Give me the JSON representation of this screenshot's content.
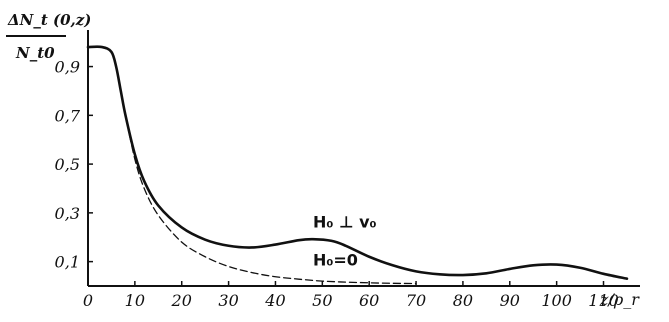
{
  "chart_data": {
    "type": "line",
    "title": "",
    "ylabel_top": "ΔN_t (0,z)",
    "ylabel_bottom": "N_t0",
    "xlabel": "z/ρ_r",
    "xlim": [
      0,
      118
    ],
    "ylim": [
      0,
      1.05
    ],
    "grid": false,
    "x_ticks": [
      0,
      10,
      20,
      30,
      40,
      50,
      60,
      70,
      80,
      90,
      100,
      110
    ],
    "x_tick_labels": [
      "0",
      "10",
      "20",
      "30",
      "40",
      "50",
      "60",
      "70",
      "80",
      "90",
      "100",
      "110"
    ],
    "y_ticks": [
      0.1,
      0.3,
      0.5,
      0.7,
      0.9
    ],
    "y_tick_labels": [
      "0,1",
      "0,3",
      "0,5",
      "0,7",
      "0,9"
    ],
    "series": [
      {
        "name": "H₀ ⊥ v₀",
        "style": "solid",
        "color": "#111111",
        "x": [
          0,
          3,
          5,
          6,
          7,
          8,
          10,
          12,
          15,
          20,
          25,
          30,
          35,
          40,
          45,
          48,
          52,
          55,
          60,
          65,
          70,
          75,
          80,
          85,
          90,
          95,
          100,
          105,
          110,
          115
        ],
        "y": [
          0.98,
          0.98,
          0.96,
          0.9,
          0.8,
          0.7,
          0.54,
          0.43,
          0.33,
          0.24,
          0.19,
          0.165,
          0.158,
          0.17,
          0.188,
          0.192,
          0.185,
          0.165,
          0.12,
          0.085,
          0.06,
          0.048,
          0.045,
          0.052,
          0.07,
          0.085,
          0.088,
          0.075,
          0.05,
          0.03
        ]
      },
      {
        "name": "H₀=0",
        "style": "dashed",
        "color": "#111111",
        "x": [
          0,
          3,
          5,
          6,
          7,
          8,
          10,
          12,
          15,
          20,
          25,
          30,
          35,
          40,
          45,
          50,
          55,
          60,
          65,
          70
        ],
        "y": [
          0.98,
          0.98,
          0.96,
          0.9,
          0.8,
          0.7,
          0.52,
          0.4,
          0.29,
          0.18,
          0.12,
          0.08,
          0.055,
          0.038,
          0.028,
          0.02,
          0.016,
          0.013,
          0.011,
          0.01
        ]
      }
    ],
    "annotations": [
      {
        "text": "H₀ ⊥ v₀",
        "x": 48,
        "y": 0.24
      },
      {
        "text": "H₀=0",
        "x": 48,
        "y": 0.085
      }
    ]
  }
}
